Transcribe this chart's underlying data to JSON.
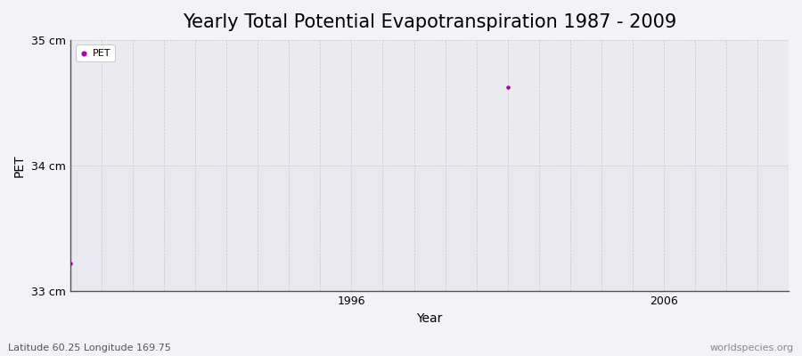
{
  "title": "Yearly Total Potential Evapotranspiration 1987 - 2009",
  "xlabel": "Year",
  "ylabel": "PET",
  "marker_color": "#aa00aa",
  "background_color": "#f2f2f7",
  "plot_bg_top": "#ebebf0",
  "plot_bg_bottom": "#e8e8ee",
  "grid_color": "#c8c8d4",
  "xlim": [
    1987,
    2010
  ],
  "ylim": [
    33.0,
    35.0
  ],
  "yticks": [
    33.0,
    34.0,
    35.0
  ],
  "ytick_labels": [
    "33 cm",
    "34 cm",
    "35 cm"
  ],
  "xticks": [
    1996,
    2006
  ],
  "data_x": [
    1987,
    2001
  ],
  "data_y": [
    33.22,
    34.62
  ],
  "legend_label": "PET",
  "footnote_left": "Latitude 60.25 Longitude 169.75",
  "footnote_right": "worldspecies.org",
  "title_fontsize": 15,
  "axis_label_fontsize": 10,
  "tick_fontsize": 9,
  "footnote_fontsize": 8
}
